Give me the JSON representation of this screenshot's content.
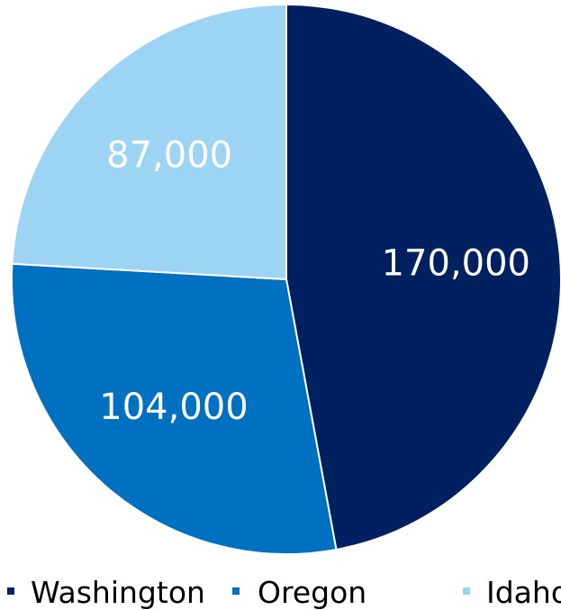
{
  "chart_data": {
    "type": "pie",
    "categories": [
      "Washington",
      "Oregon",
      "Idaho"
    ],
    "values": [
      170000,
      104000,
      87000
    ],
    "data_labels": [
      "170,000",
      "104,000",
      "87,000"
    ],
    "colors": [
      "#002060",
      "#0070C0",
      "#9DD3F3"
    ],
    "start_angle_deg": 0,
    "direction": "clockwise",
    "title": "",
    "legend": {
      "placement": "bottom",
      "entries": [
        "Washington",
        "Oregon",
        "Idaho"
      ]
    }
  }
}
